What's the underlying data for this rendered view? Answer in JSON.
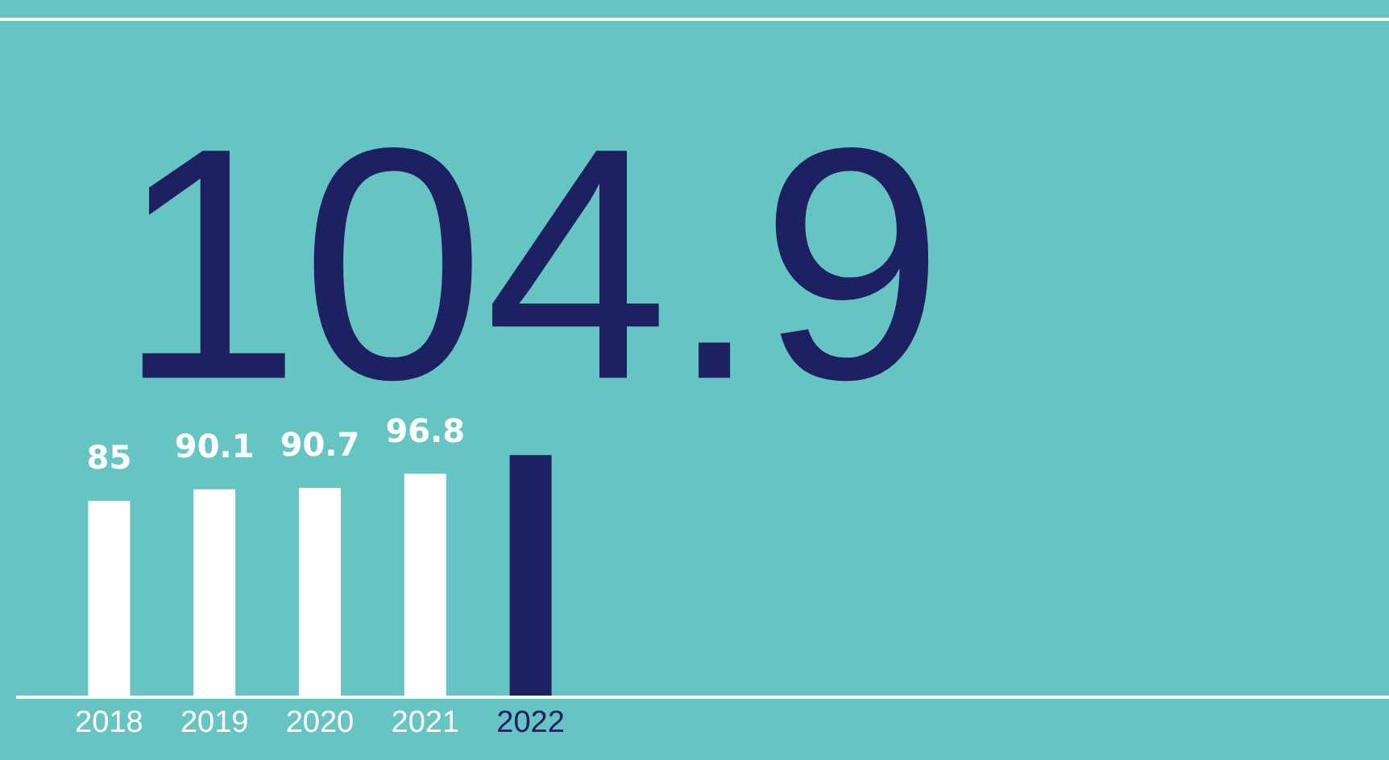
{
  "chart_data": {
    "type": "bar",
    "categories": [
      "2018",
      "2019",
      "2020",
      "2021",
      "2022"
    ],
    "values": [
      85,
      90.1,
      90.7,
      96.8,
      104.9
    ],
    "colors": [
      "#ffffff",
      "#ffffff",
      "#ffffff",
      "#ffffff",
      "#1e2161"
    ],
    "data_labels": true,
    "grid": false
  }
}
